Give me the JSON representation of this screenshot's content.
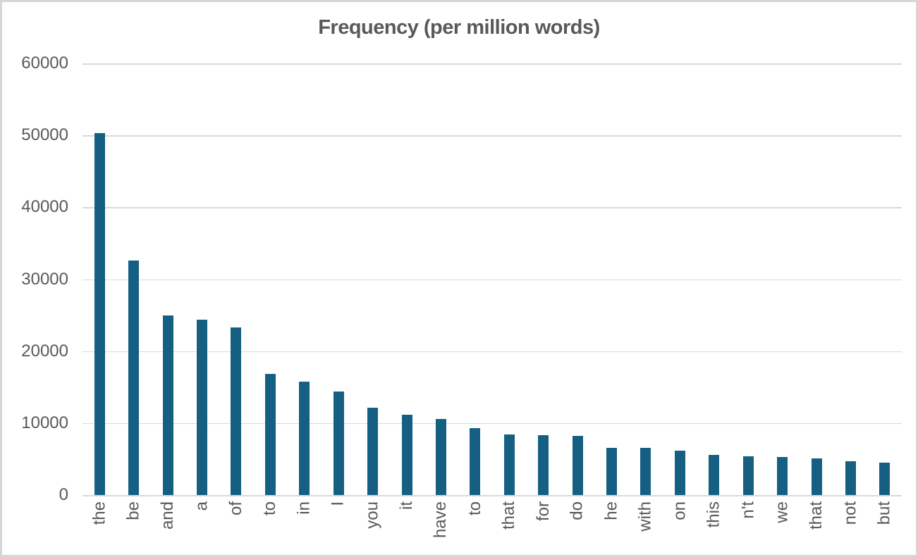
{
  "chart_data": {
    "type": "bar",
    "title": "Frequency (per million words)",
    "categories": [
      "the",
      "be",
      "and",
      "a",
      "of",
      "to",
      "in",
      "I",
      "you",
      "it",
      "have",
      "to",
      "that",
      "for",
      "do",
      "he",
      "with",
      "on",
      "this",
      "n't",
      "we",
      "that",
      "not",
      "but"
    ],
    "values": [
      50300,
      32600,
      25000,
      24400,
      23300,
      16850,
      15800,
      14350,
      12150,
      11150,
      10600,
      9350,
      8450,
      8350,
      8250,
      6600,
      6600,
      6150,
      5600,
      5350,
      5250,
      5050,
      4700,
      4550
    ],
    "xlabel": "",
    "ylabel": "",
    "ylim": [
      0,
      60000
    ],
    "yticks": [
      60000,
      50000,
      40000,
      30000,
      20000,
      10000,
      0
    ],
    "grid": true,
    "legend": false,
    "colors": {
      "bar": "#156082",
      "gridline": "#d9d9d9",
      "axis_text": "#595959",
      "title_text": "#595959",
      "frame_border": "#d6d6d6",
      "background": "#ffffff"
    }
  }
}
